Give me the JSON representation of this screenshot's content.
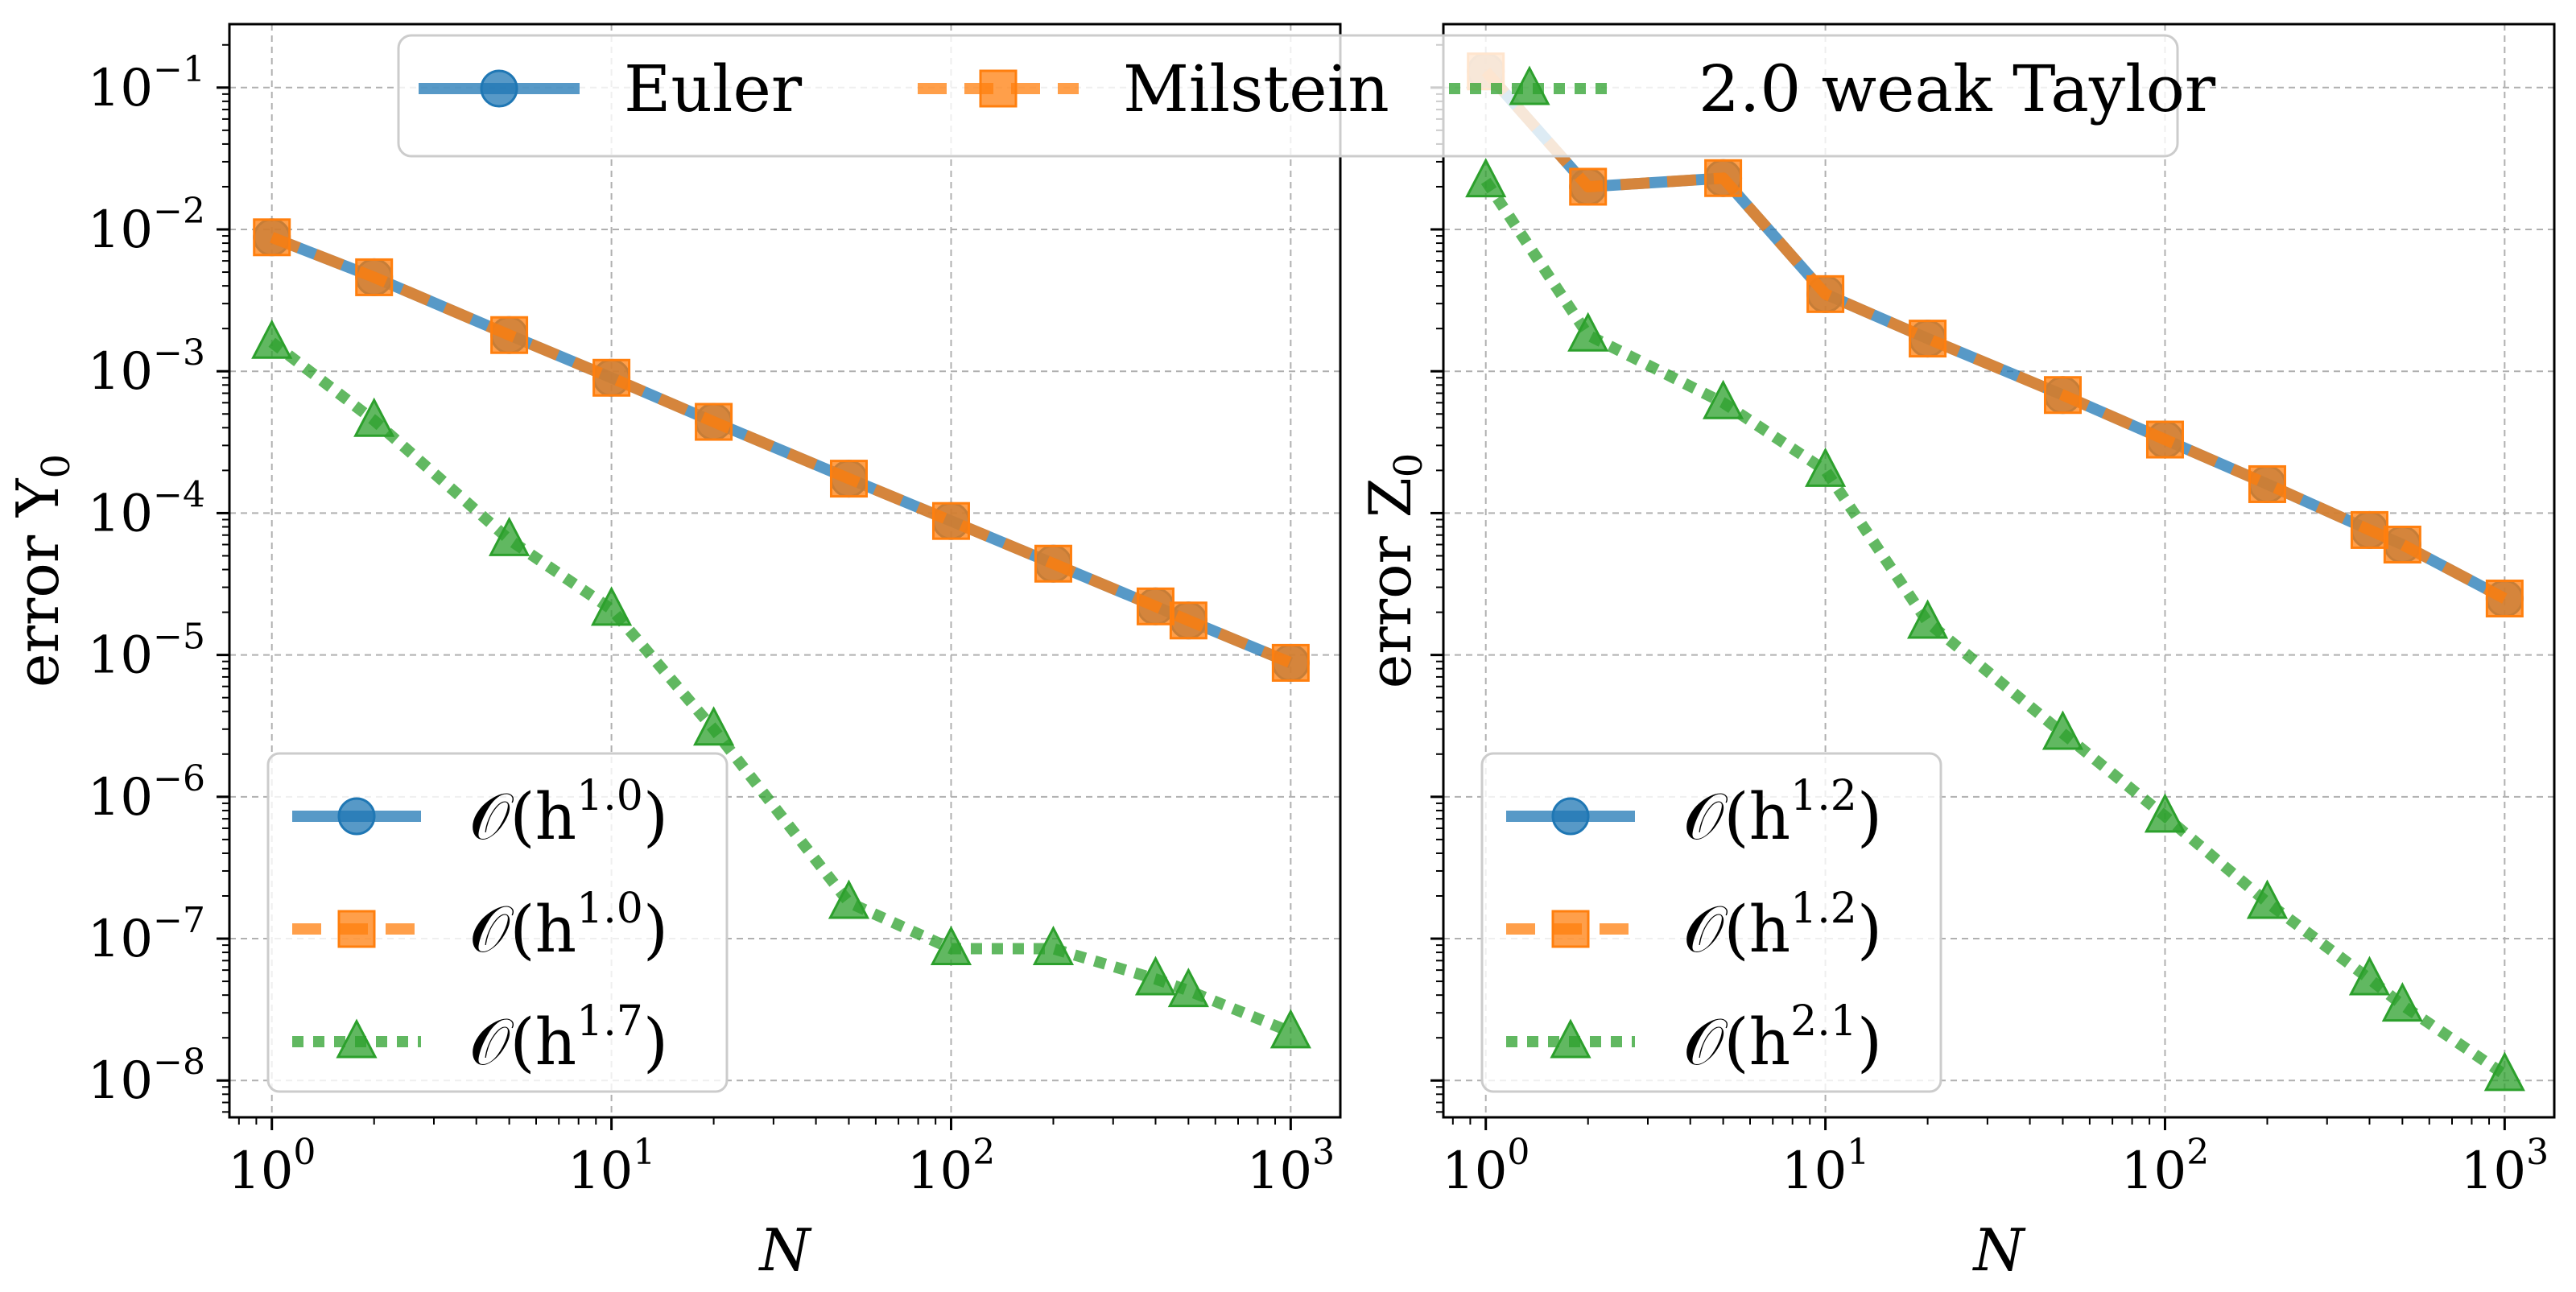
{
  "chart_data": [
    {
      "type": "line",
      "panel": "left",
      "xscale": "log",
      "yscale": "log",
      "xlabel": "N",
      "ylabel": "error Y",
      "ylabel_subscript": "0",
      "xlim": [
        0.75,
        1400
      ],
      "ylim": [
        5.5e-09,
        0.28
      ],
      "x_ticks": [
        {
          "value": 1,
          "base": "10",
          "exp": "0"
        },
        {
          "value": 10,
          "base": "10",
          "exp": "1"
        },
        {
          "value": 100,
          "base": "10",
          "exp": "2"
        },
        {
          "value": 1000,
          "base": "10",
          "exp": "3"
        }
      ],
      "y_ticks": [
        {
          "value": 0.1,
          "base": "10",
          "exp": "−1"
        },
        {
          "value": 0.01,
          "base": "10",
          "exp": "−2"
        },
        {
          "value": 0.001,
          "base": "10",
          "exp": "−3"
        },
        {
          "value": 0.0001,
          "base": "10",
          "exp": "−4"
        },
        {
          "value": 1e-05,
          "base": "10",
          "exp": "−5"
        },
        {
          "value": 1e-06,
          "base": "10",
          "exp": "−6"
        },
        {
          "value": 1e-07,
          "base": "10",
          "exp": "−7"
        },
        {
          "value": 1e-08,
          "base": "10",
          "exp": "−8"
        }
      ],
      "grid": true,
      "x": [
        1,
        2,
        5,
        10,
        20,
        50,
        100,
        200,
        400,
        500,
        1000
      ],
      "series": [
        {
          "name": "Euler",
          "color": "#1f77b4",
          "style": "solid",
          "marker": "circle",
          "values": [
            0.0088,
            0.0046,
            0.0018,
            0.0009,
            0.00044,
            0.000175,
            8.8e-05,
            4.4e-05,
            2.2e-05,
            1.75e-05,
            8.8e-06
          ]
        },
        {
          "name": "Milstein",
          "color": "#ff7f0e",
          "style": "dashed",
          "marker": "square",
          "values": [
            0.0088,
            0.0046,
            0.0018,
            0.0009,
            0.00044,
            0.000175,
            8.8e-05,
            4.4e-05,
            2.2e-05,
            1.75e-05,
            8.8e-06
          ]
        },
        {
          "name": "2.0 weak Taylor",
          "color": "#2ca02c",
          "style": "dotted",
          "marker": "triangle",
          "values": [
            0.0016,
            0.00045,
            6.5e-05,
            2.1e-05,
            3e-06,
            1.8e-07,
            8.5e-08,
            8.5e-08,
            5.2e-08,
            4.3e-08,
            2.2e-08
          ]
        }
      ],
      "legend": {
        "placement": "lower-left",
        "entries": [
          {
            "series": "Euler",
            "base": "𝒪(h",
            "exp": "1.0",
            "close": ")"
          },
          {
            "series": "Milstein",
            "base": "𝒪(h",
            "exp": "1.0",
            "close": ")"
          },
          {
            "series": "2.0 weak Taylor",
            "base": "𝒪(h",
            "exp": "1.7",
            "close": ")"
          }
        ]
      }
    },
    {
      "type": "line",
      "panel": "right",
      "xscale": "log",
      "yscale": "log",
      "xlabel": "N",
      "ylabel": "error Z",
      "ylabel_subscript": "0",
      "xlim": [
        0.75,
        1400
      ],
      "ylim": [
        5.5e-09,
        0.28
      ],
      "x_ticks": [
        {
          "value": 1,
          "base": "10",
          "exp": "0"
        },
        {
          "value": 10,
          "base": "10",
          "exp": "1"
        },
        {
          "value": 100,
          "base": "10",
          "exp": "2"
        },
        {
          "value": 1000,
          "base": "10",
          "exp": "3"
        }
      ],
      "grid": true,
      "x": [
        1,
        2,
        5,
        10,
        20,
        50,
        100,
        200,
        400,
        500,
        1000
      ],
      "series": [
        {
          "name": "Euler",
          "color": "#1f77b4",
          "style": "solid",
          "marker": "circle",
          "values": [
            0.13,
            0.02,
            0.023,
            0.0035,
            0.0017,
            0.00068,
            0.00033,
            0.00016,
            7.6e-05,
            6e-05,
            2.5e-05
          ]
        },
        {
          "name": "Milstein",
          "color": "#ff7f0e",
          "style": "dashed",
          "marker": "square",
          "values": [
            0.13,
            0.02,
            0.023,
            0.0035,
            0.0017,
            0.00068,
            0.00033,
            0.00016,
            7.6e-05,
            6e-05,
            2.5e-05
          ]
        },
        {
          "name": "2.0 weak Taylor",
          "color": "#2ca02c",
          "style": "dotted",
          "marker": "triangle",
          "values": [
            0.022,
            0.0018,
            0.0006,
            0.0002,
            1.7e-05,
            2.8e-06,
            7.3e-07,
            1.8e-07,
            5.2e-08,
            3.4e-08,
            1.1e-08
          ]
        }
      ],
      "legend": {
        "placement": "lower-left",
        "entries": [
          {
            "series": "Euler",
            "base": "𝒪(h",
            "exp": "1.2",
            "close": ")"
          },
          {
            "series": "Milstein",
            "base": "𝒪(h",
            "exp": "1.2",
            "close": ")"
          },
          {
            "series": "2.0 weak Taylor",
            "base": "𝒪(h",
            "exp": "2.1",
            "close": ")"
          }
        ]
      }
    }
  ],
  "top_legend": {
    "placement": "top-center",
    "entries": [
      {
        "series": "Euler",
        "label": "Euler"
      },
      {
        "series": "Milstein",
        "label": "Milstein"
      },
      {
        "series": "2.0 weak Taylor",
        "label": "2.0 weak Taylor"
      }
    ]
  }
}
